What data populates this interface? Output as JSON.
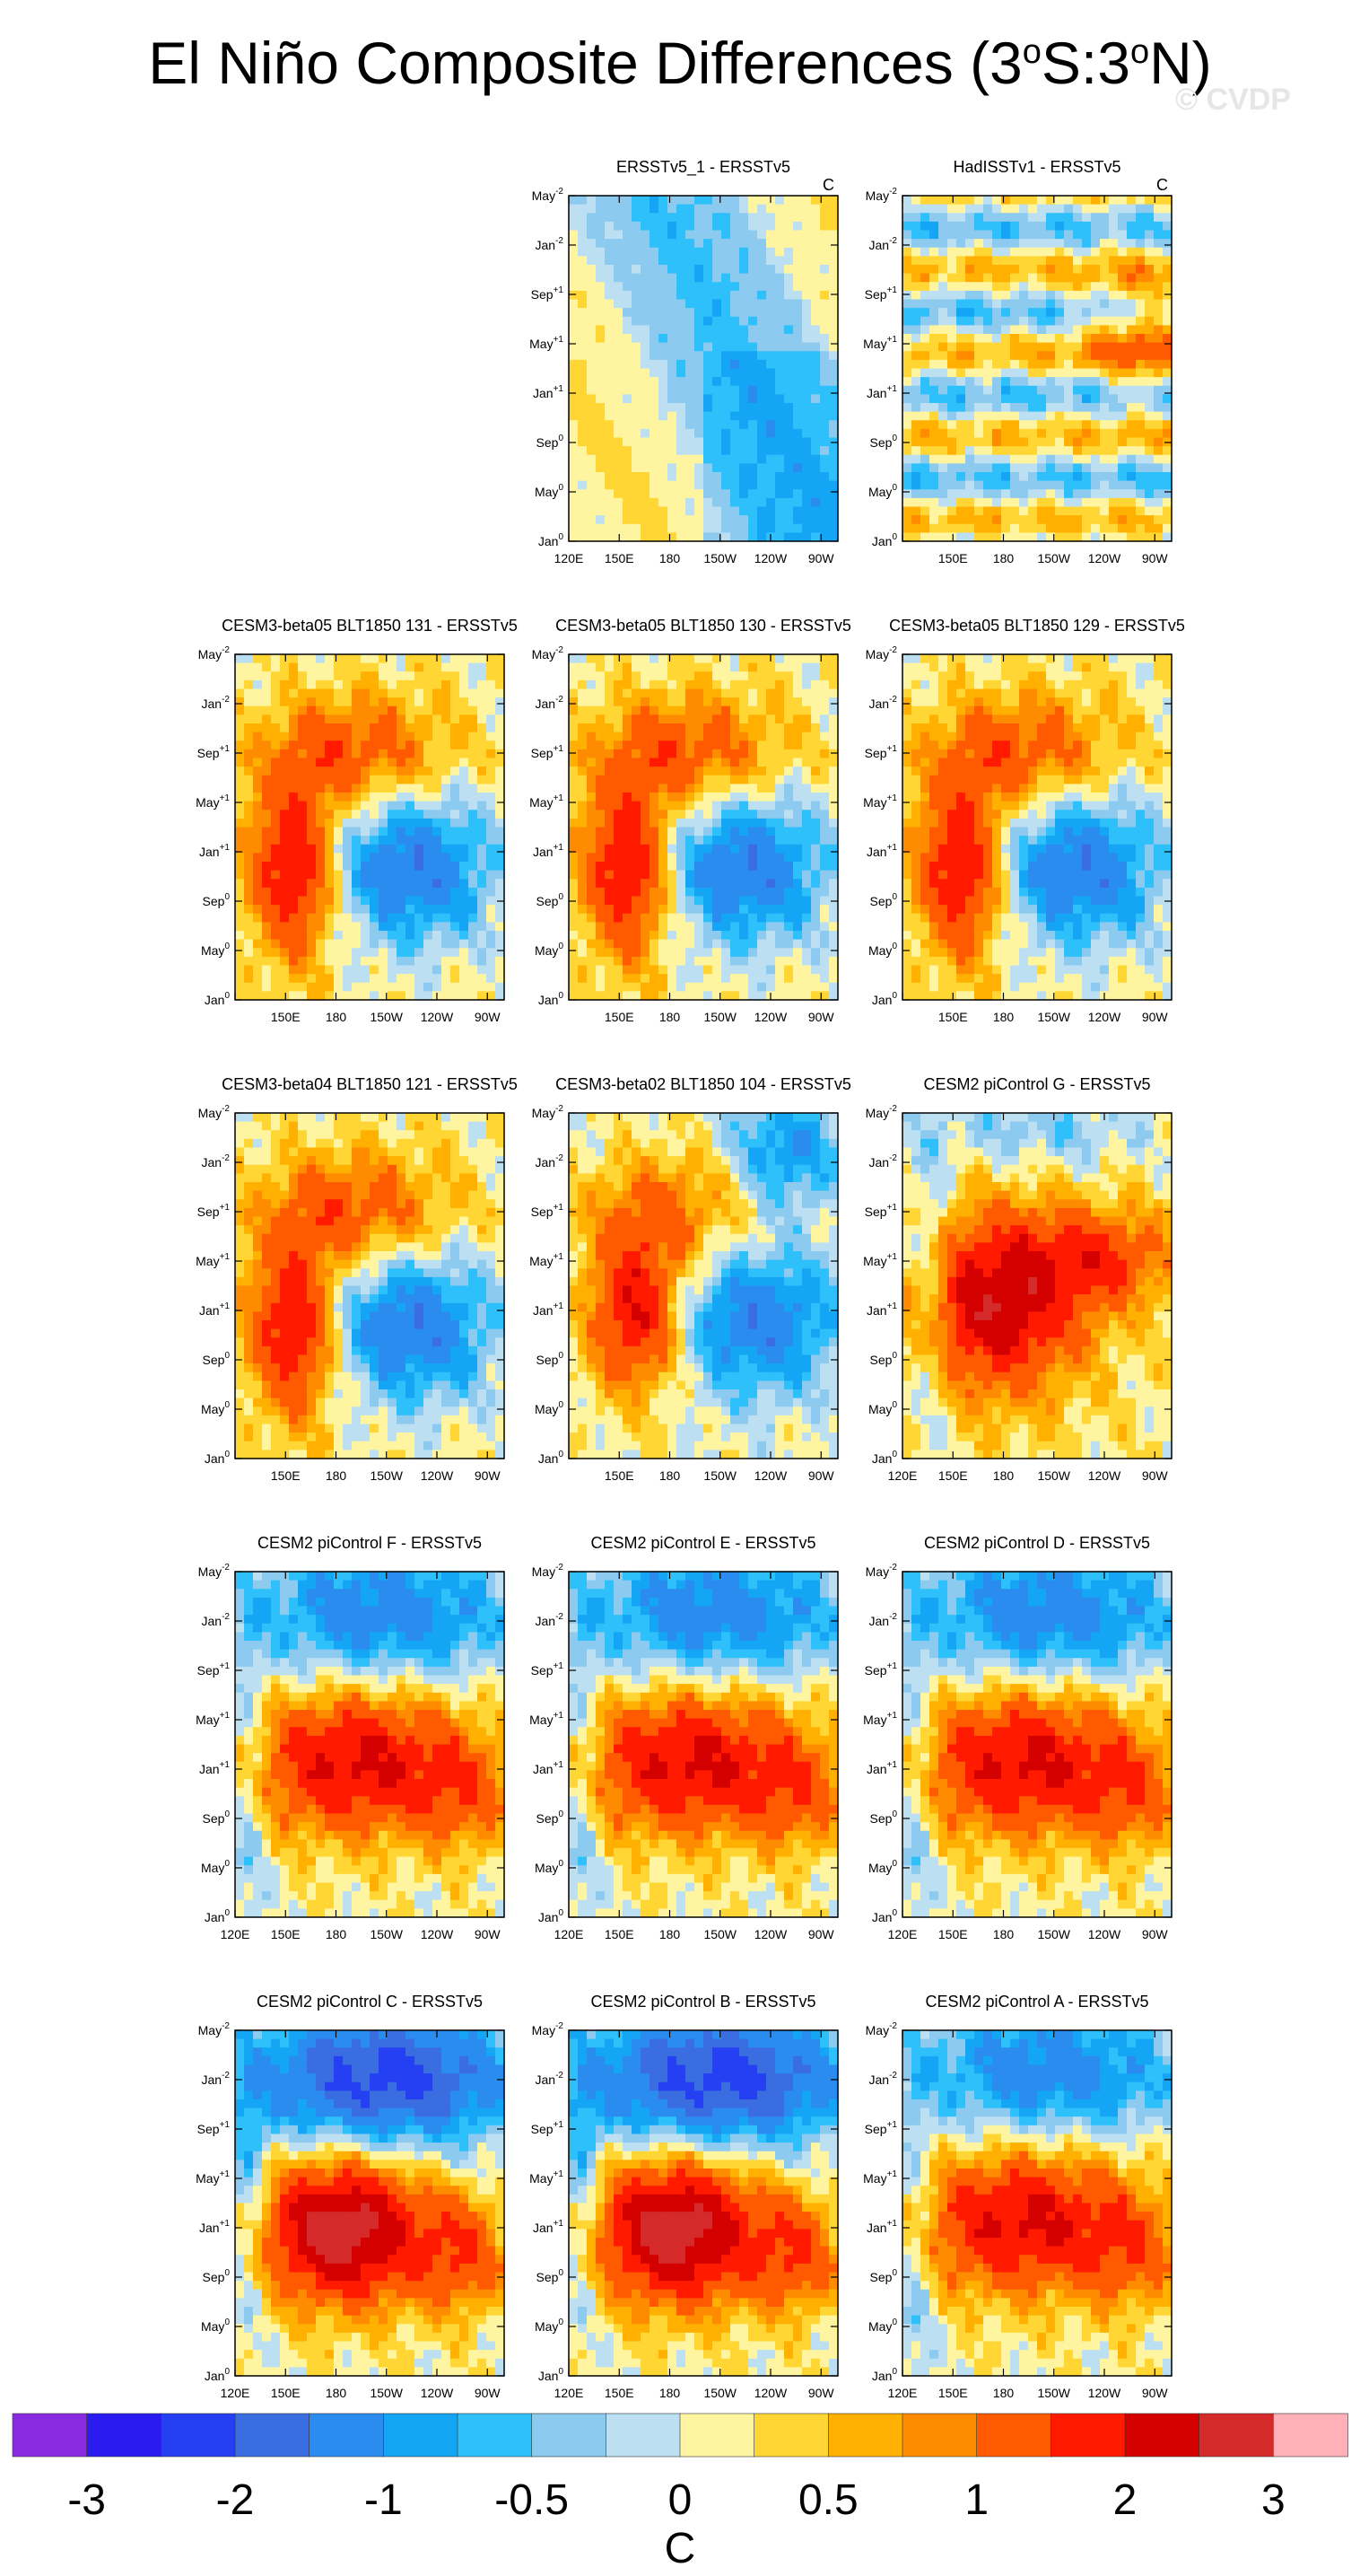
{
  "title": {
    "text": "El Niño Composite Differences (3",
    "sup1": "o",
    "mid": "S:3",
    "sup2": "o",
    "end": "N)"
  },
  "watermark": "© CVDP",
  "units": "C",
  "y_axis": {
    "labels": [
      {
        "base": "Jan",
        "sup": "0"
      },
      {
        "base": "May",
        "sup": "0"
      },
      {
        "base": "Sep",
        "sup": "0"
      },
      {
        "base": "Jan",
        "sup": "+1"
      },
      {
        "base": "May",
        "sup": "+1"
      },
      {
        "base": "Sep",
        "sup": "+1"
      },
      {
        "base": "Jan",
        "sup": "-2"
      },
      {
        "base": "May",
        "sup": "-2"
      }
    ]
  },
  "x_axis": {
    "labels": [
      "120E",
      "150E",
      "180",
      "150W",
      "120W",
      "90W"
    ]
  },
  "colorbar": {
    "colors": [
      "#8a2be2",
      "#2a1bf0",
      "#2440f2",
      "#3a6ee0",
      "#2b8cf0",
      "#14a6f5",
      "#2ec0fa",
      "#8ccaf0",
      "#bce0f2",
      "#fff5a0",
      "#ffd633",
      "#ffb000",
      "#ff8c00",
      "#ff5a00",
      "#ff1a00",
      "#d40000",
      "#d42a2a",
      "#ffb0b8"
    ],
    "labels": [
      "-3",
      "-2",
      "-1",
      "-0.5",
      "0",
      "0.5",
      "1",
      "2",
      "3"
    ]
  },
  "chart_data": [
    {
      "type": "heatmap",
      "title": "ERSSTv5_1 - ERSSTv5",
      "unit_label": "C",
      "show_xlabel_120E": true,
      "pattern": "weak"
    },
    {
      "type": "heatmap",
      "title": "HadISSTv1 - ERSSTv5",
      "unit_label": "C",
      "show_xlabel_120E": false,
      "pattern": "banded"
    },
    {
      "type": "heatmap",
      "title": "CESM3-beta05 BLT1850 131 - ERSSTv5",
      "show_xlabel_120E": false,
      "pattern": "west_warm_east_cool"
    },
    {
      "type": "heatmap",
      "title": "CESM3-beta05 BLT1850 130 - ERSSTv5",
      "show_xlabel_120E": false,
      "pattern": "west_warm_east_cool"
    },
    {
      "type": "heatmap",
      "title": "CESM3-beta05 BLT1850 129 - ERSSTv5",
      "show_xlabel_120E": false,
      "pattern": "west_warm_east_cool"
    },
    {
      "type": "heatmap",
      "title": "CESM3-beta04 BLT1850 121 - ERSSTv5",
      "show_xlabel_120E": false,
      "pattern": "west_warm_east_cool"
    },
    {
      "type": "heatmap",
      "title": "CESM3-beta02 BLT1850 104 - ERSSTv5",
      "show_xlabel_120E": false,
      "pattern": "west_warm_east_cool_strong"
    },
    {
      "type": "heatmap",
      "title": "CESM2 piControl G - ERSSTv5",
      "show_xlabel_120E": true,
      "pattern": "warm_center"
    },
    {
      "type": "heatmap",
      "title": "CESM2 piControl F - ERSSTv5",
      "show_xlabel_120E": true,
      "pattern": "warm_mid_cool_top"
    },
    {
      "type": "heatmap",
      "title": "CESM2 piControl E - ERSSTv5",
      "show_xlabel_120E": true,
      "pattern": "warm_mid_cool_top"
    },
    {
      "type": "heatmap",
      "title": "CESM2 piControl D - ERSSTv5",
      "show_xlabel_120E": true,
      "pattern": "warm_mid_cool_top"
    },
    {
      "type": "heatmap",
      "title": "CESM2 piControl C - ERSSTv5",
      "show_xlabel_120E": true,
      "pattern": "strong_warm_cool_top"
    },
    {
      "type": "heatmap",
      "title": "CESM2 piControl B - ERSSTv5",
      "show_xlabel_120E": true,
      "pattern": "strong_warm_cool_top"
    },
    {
      "type": "heatmap",
      "title": "CESM2 piControl A - ERSSTv5",
      "show_xlabel_120E": true,
      "pattern": "warm_mid_cool_top"
    }
  ]
}
